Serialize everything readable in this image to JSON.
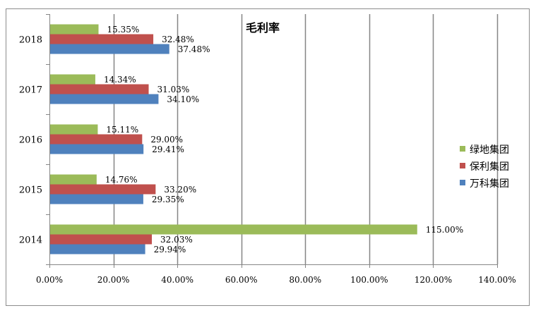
{
  "chart_data": {
    "type": "bar",
    "orientation": "horizontal",
    "title": "毛利率",
    "categories": [
      "2014",
      "2015",
      "2016",
      "2017",
      "2018"
    ],
    "series": [
      {
        "name": "万科集团",
        "color": "#4f81bd",
        "values": [
          29.94,
          29.35,
          29.41,
          34.1,
          37.48
        ],
        "labels": [
          "29.94%",
          "29.35%",
          "29.41%",
          "34.10%",
          "37.48%"
        ]
      },
      {
        "name": "保利集团",
        "color": "#c0504d",
        "values": [
          32.03,
          33.2,
          29.0,
          31.03,
          32.48
        ],
        "labels": [
          "32.03%",
          "33.20%",
          "29.00%",
          "31.03%",
          "32.48%"
        ]
      },
      {
        "name": "绿地集团",
        "color": "#9bbb59",
        "values": [
          115.0,
          14.76,
          15.11,
          14.34,
          15.35
        ],
        "labels": [
          "115.00%",
          "14.76%",
          "15.11%",
          "14.34%",
          "15.35%"
        ]
      }
    ],
    "legend_order": [
      "绿地集团",
      "保利集团",
      "万科集团"
    ],
    "xlim": [
      0,
      140
    ],
    "xticks": [
      0,
      20,
      40,
      60,
      80,
      100,
      120,
      140
    ],
    "xtick_labels": [
      "0.00%",
      "20.00%",
      "40.00%",
      "60.00%",
      "80.00%",
      "100.00%",
      "120.00%",
      "140.00%"
    ],
    "xlabel": "",
    "ylabel": "",
    "grid": "vertical",
    "legend_position": "right"
  }
}
